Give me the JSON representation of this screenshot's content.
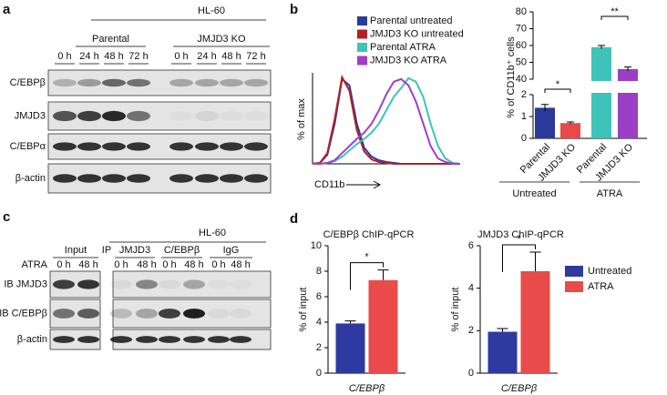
{
  "panel_labels": [
    "a",
    "b",
    "c",
    "d"
  ],
  "blot_a": {
    "cell_line": "HL-60",
    "groups": [
      "Parental",
      "JMJD3 KO"
    ],
    "timepoints": [
      "0 h",
      "24 h",
      "48 h",
      "72 h",
      "0 h",
      "24 h",
      "48 h",
      "72 h"
    ],
    "rows": [
      "C/EBPβ",
      "JMJD3",
      "C/EBPα",
      "β-actin"
    ]
  },
  "blot_c": {
    "cell_line": "HL-60",
    "ip_label": "IP",
    "columns": [
      "Input",
      "JMJD3",
      "C/EBPβ",
      "IgG"
    ],
    "treatment": "ATRA",
    "timepoints": [
      "0 h",
      "48 h",
      "0 h",
      "48 h",
      "0 h",
      "48 h",
      "0 h",
      "48 h"
    ],
    "rows": [
      "IB JMJD3",
      "IB C/EBPβ",
      "β-actin"
    ]
  },
  "chart_data": [
    {
      "type": "line",
      "xlabel": "CD11b",
      "ylabel": "% of max",
      "xlim": [
        0,
        100
      ],
      "ylim": [
        0,
        100
      ],
      "x": [
        0,
        5,
        10,
        15,
        20,
        25,
        30,
        35,
        40,
        45,
        50,
        55,
        60,
        65,
        70,
        75,
        80,
        85,
        90,
        95,
        100
      ],
      "series": [
        {
          "name": "Parental untreated",
          "color": "#2b3a9a",
          "values": [
            0,
            1,
            10,
            45,
            95,
            88,
            45,
            18,
            8,
            4,
            2,
            1,
            0,
            0,
            0,
            0,
            0,
            0,
            0,
            0,
            0
          ]
        },
        {
          "name": "JMJD3 KO untreated",
          "color": "#b0202a",
          "values": [
            0,
            1,
            12,
            50,
            97,
            82,
            38,
            14,
            5,
            2,
            1,
            0,
            0,
            0,
            0,
            0,
            0,
            0,
            0,
            0,
            0
          ]
        },
        {
          "name": "Parental ATRA",
          "color": "#3ec3b8",
          "values": [
            0,
            0,
            1,
            3,
            8,
            15,
            22,
            28,
            35,
            45,
            60,
            75,
            85,
            96,
            92,
            75,
            45,
            20,
            6,
            1,
            0
          ]
        },
        {
          "name": "JMJD3 KO ATRA",
          "color": "#a03ec8",
          "values": [
            0,
            0,
            1,
            4,
            12,
            20,
            28,
            35,
            45,
            60,
            78,
            92,
            95,
            88,
            70,
            45,
            20,
            6,
            2,
            0,
            0
          ]
        }
      ]
    },
    {
      "type": "bar",
      "ylabel": "% of CD11b⁺ cells",
      "categories": [
        "Parental",
        "JMJD3 KO",
        "Parental",
        "JMJD3 KO"
      ],
      "values": [
        1.4,
        0.7,
        59,
        46
      ],
      "errors": [
        0.15,
        0.05,
        1,
        1.2
      ],
      "colors": [
        "#2b3a9a",
        "#e84a4a",
        "#3ec3b8",
        "#9a3fc6"
      ],
      "groups": [
        "Untreated",
        "ATRA"
      ],
      "annotations": [
        "*",
        "**"
      ],
      "ylim": [
        0,
        80
      ],
      "axis_break": [
        2,
        40
      ],
      "yticks": [
        0,
        1,
        2,
        40,
        50,
        60,
        70,
        80
      ]
    },
    {
      "type": "grouped_bar",
      "title": "C/EBPβ  ChIP-qPCR",
      "ylabel": "% of input",
      "categories": [
        "C/EBPβ"
      ],
      "series": [
        {
          "color": "#2e3aa0",
          "values": [
            3.9
          ],
          "errors": [
            0.2
          ]
        },
        {
          "color": "#e94b4b",
          "values": [
            7.3
          ],
          "errors": [
            0.8
          ]
        }
      ],
      "annotations": [
        "*"
      ],
      "ylim": [
        0,
        10
      ],
      "yticks": [
        0,
        2,
        4,
        6,
        8,
        10
      ]
    },
    {
      "type": "grouped_bar",
      "title": "JMJD3 ChIP-qPCR",
      "ylabel": "% of input",
      "categories": [
        "C/EBPβ"
      ],
      "series": [
        {
          "name": "Untreated",
          "color": "#2e3aa0",
          "values": [
            1.95
          ],
          "errors": [
            0.15
          ]
        },
        {
          "name": "ATRA",
          "color": "#e94b4b",
          "values": [
            4.8
          ],
          "errors": [
            0.9
          ]
        }
      ],
      "annotations": [
        "*"
      ],
      "ylim": [
        0,
        6
      ],
      "yticks": [
        0,
        2,
        4,
        6
      ]
    }
  ]
}
